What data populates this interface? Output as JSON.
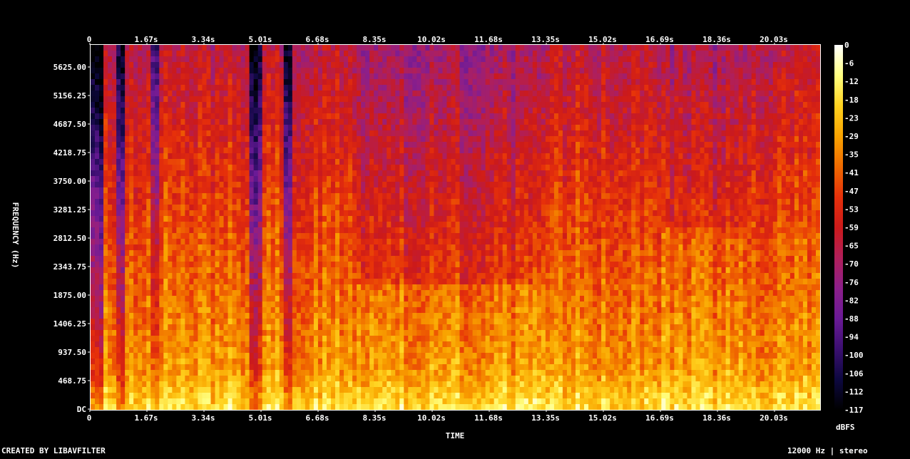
{
  "chart_data": {
    "type": "heatmap",
    "title": "",
    "xlabel": "TIME",
    "ylabel": "FREQUENCY (Hz)",
    "x_ticks": [
      "0",
      "1.67s",
      "3.34s",
      "5.01s",
      "6.68s",
      "8.35s",
      "10.02s",
      "11.68s",
      "13.35s",
      "15.02s",
      "16.69s",
      "18.36s",
      "20.03s"
    ],
    "y_ticks": [
      "DC",
      "468.75",
      "937.50",
      "1406.25",
      "1875.00",
      "2343.75",
      "2812.50",
      "3281.25",
      "3750.00",
      "4218.75",
      "4687.50",
      "5156.25",
      "5625.00"
    ],
    "xlim": [
      0,
      21.8
    ],
    "ylim": [
      0,
      6000
    ],
    "colorbar": {
      "label": "dBFS",
      "ticks": [
        "0",
        "-6",
        "-12",
        "-18",
        "-23",
        "-29",
        "-35",
        "-41",
        "-47",
        "-53",
        "-59",
        "-65",
        "-70",
        "-76",
        "-82",
        "-88",
        "-94",
        "-100",
        "-106",
        "-112",
        "-117"
      ],
      "range": [
        -117,
        0
      ],
      "colormap": [
        "#000000",
        "#0d0840",
        "#3b0f70",
        "#6a1a96",
        "#8c1f8a",
        "#b01f5a",
        "#cc1a1a",
        "#e6300a",
        "#f06a00",
        "#f9a300",
        "#ffd21f",
        "#ffff80",
        "#ffffff"
      ]
    }
  },
  "footer": {
    "left": "CREATED BY LIBAVFILTER",
    "right": "12000 Hz | stereo"
  }
}
